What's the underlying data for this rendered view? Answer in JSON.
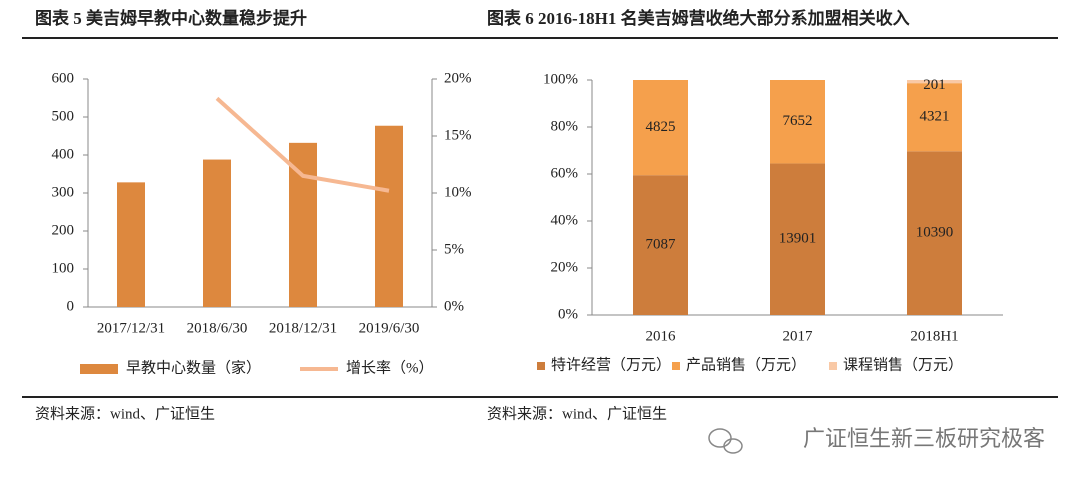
{
  "chart_data": [
    {
      "type": "bar",
      "title": "图表 5 美吉姆早教中心数量稳步提升",
      "source": "资料来源：wind、广证恒生",
      "categories": [
        "2017/12/31",
        "2018/6/30",
        "2018/12/31",
        "2019/6/30"
      ],
      "series": [
        {
          "name": "早教中心数量（家）",
          "color": "#dd883e",
          "values": [
            328,
            388,
            432,
            477
          ]
        },
        {
          "name": "增长率（%）",
          "type": "line",
          "axis": "y2",
          "color": "#f6b892",
          "values": [
            null,
            18.3,
            11.5,
            10.2
          ]
        }
      ],
      "ylim": [
        0,
        600
      ],
      "yticks": [
        0,
        100,
        200,
        300,
        400,
        500,
        600
      ],
      "y2lim": [
        0,
        20
      ],
      "y2ticks": [
        {
          "value": 0,
          "label": "0%"
        },
        {
          "value": 5,
          "label": "5%"
        },
        {
          "value": 10,
          "label": "10%"
        },
        {
          "value": 15,
          "label": "15%"
        },
        {
          "value": 20,
          "label": "20%"
        }
      ]
    },
    {
      "type": "bar",
      "stacked": "percent",
      "title": "图表 6 2016-18H1 名美吉姆营收绝大部分系加盟相关收入",
      "source": "资料来源：wind、广证恒生",
      "categories": [
        "2016",
        "2017",
        "2018H1"
      ],
      "series": [
        {
          "name": "特许经营（万元）",
          "color": "#cd7d3c",
          "values": [
            7087,
            13901,
            10390
          ]
        },
        {
          "name": "产品销售（万元）",
          "color": "#f5a04c",
          "values": [
            4825,
            7652,
            4321
          ]
        },
        {
          "name": "课程销售（万元）",
          "color": "#f9c9a6",
          "values": [
            null,
            null,
            201
          ]
        }
      ],
      "ylim": [
        0,
        100
      ],
      "yticks": [
        {
          "value": 0,
          "label": "0%"
        },
        {
          "value": 20,
          "label": "20%"
        },
        {
          "value": 40,
          "label": "40%"
        },
        {
          "value": 60,
          "label": "60%"
        },
        {
          "value": 80,
          "label": "80%"
        },
        {
          "value": 100,
          "label": "100%"
        }
      ]
    }
  ],
  "watermark": "广证恒生新三板研究极客"
}
